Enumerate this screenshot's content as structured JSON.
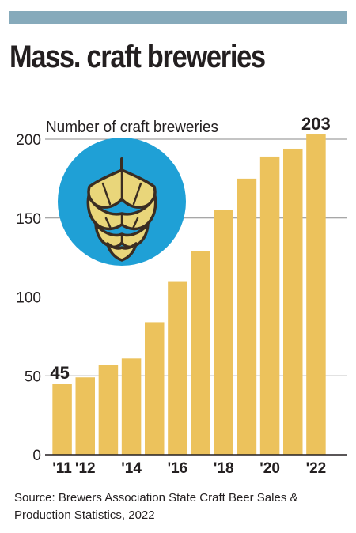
{
  "header": {
    "accent_color": "#86aabb",
    "title": "Mass. craft breweries"
  },
  "chart_data": {
    "type": "bar",
    "ylabel": "Number of craft breweries",
    "categories": [
      "2011",
      "2012",
      "2013",
      "2014",
      "2015",
      "2016",
      "2017",
      "2018",
      "2019",
      "2020",
      "2021",
      "2022"
    ],
    "x_tick_labels": [
      "'11",
      "'12",
      "",
      "'14",
      "",
      "'16",
      "",
      "'18",
      "",
      "'20",
      "",
      "'22"
    ],
    "values": [
      45,
      49,
      57,
      61,
      84,
      110,
      129,
      155,
      175,
      189,
      194,
      203
    ],
    "ylim": [
      0,
      200
    ],
    "yticks": [
      0,
      50,
      100,
      150,
      200
    ],
    "grid": true,
    "data_labels": [
      {
        "category": "2011",
        "text": "45"
      },
      {
        "category": "2022",
        "text": "203"
      }
    ],
    "bar_color": "#ecc25c",
    "icon": "hop-icon",
    "icon_colors": {
      "circle": "#1fa0d6",
      "hop": "#e9d67a",
      "outline": "#3a2d22"
    }
  },
  "footer": {
    "source": "Source: Brewers Association State Craft Beer Sales & Production Statistics, 2022"
  }
}
